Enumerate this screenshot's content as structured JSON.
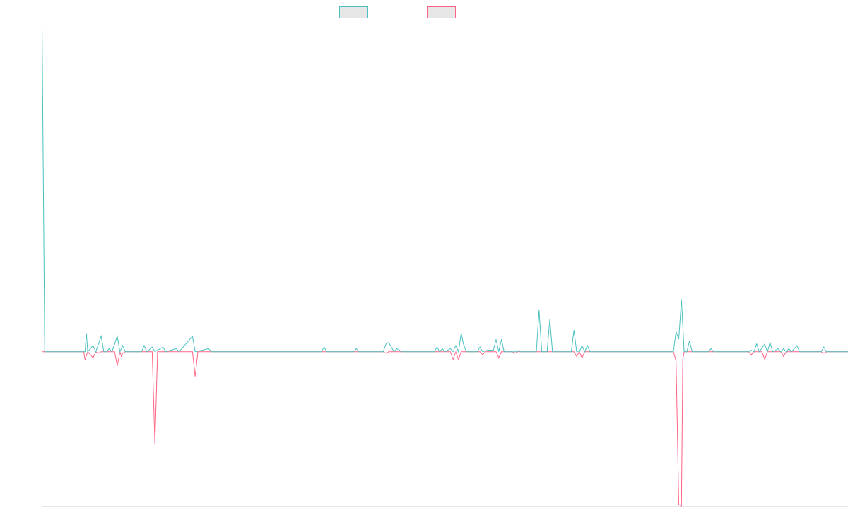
{
  "chart_data": {
    "type": "line",
    "title": "",
    "xlabel": "",
    "ylabel": "",
    "grid": false,
    "legend_position": "top-center",
    "x_count": 300,
    "ylim": [
      -100,
      212
    ],
    "series": [
      {
        "color": "#4bc0c0",
        "legend_fill": "#e6e6e6",
        "points": [
          [
            0,
            212
          ],
          [
            1,
            0
          ],
          [
            16,
            0
          ],
          [
            16.5,
            12
          ],
          [
            17,
            0
          ],
          [
            19,
            4
          ],
          [
            20,
            0
          ],
          [
            22,
            10
          ],
          [
            23,
            0
          ],
          [
            24,
            0
          ],
          [
            25,
            2
          ],
          [
            26,
            0
          ],
          [
            28,
            10
          ],
          [
            29,
            0
          ],
          [
            30,
            4
          ],
          [
            31,
            0
          ],
          [
            37,
            0
          ],
          [
            38,
            4
          ],
          [
            39,
            0
          ],
          [
            41,
            3
          ],
          [
            42,
            0
          ],
          [
            45,
            3
          ],
          [
            46,
            0
          ],
          [
            50,
            2
          ],
          [
            51,
            0
          ],
          [
            56,
            10
          ],
          [
            57,
            0
          ],
          [
            62,
            2
          ],
          [
            63,
            0
          ],
          [
            104,
            0
          ],
          [
            105,
            3
          ],
          [
            106,
            0
          ],
          [
            116,
            0
          ],
          [
            117,
            2
          ],
          [
            118,
            0
          ],
          [
            127,
            0
          ],
          [
            128,
            5
          ],
          [
            129,
            6
          ],
          [
            130,
            3
          ],
          [
            131,
            0
          ],
          [
            132,
            2
          ],
          [
            133,
            1
          ],
          [
            134,
            0
          ],
          [
            146,
            0
          ],
          [
            147,
            3
          ],
          [
            148,
            0
          ],
          [
            149,
            2
          ],
          [
            150,
            0
          ],
          [
            152,
            2
          ],
          [
            153,
            0
          ],
          [
            154,
            4
          ],
          [
            155,
            0
          ],
          [
            156,
            12
          ],
          [
            157,
            4
          ],
          [
            158,
            0
          ],
          [
            162,
            0
          ],
          [
            163,
            3
          ],
          [
            164,
            0
          ],
          [
            166,
            1
          ],
          [
            167,
            1
          ],
          [
            168,
            1
          ],
          [
            169,
            8
          ],
          [
            170,
            0
          ],
          [
            171,
            8
          ],
          [
            172,
            0
          ],
          [
            177,
            0
          ],
          [
            177.5,
            1
          ],
          [
            178,
            0
          ],
          [
            184,
            0
          ],
          [
            185,
            27
          ],
          [
            186,
            0
          ],
          [
            188,
            0
          ],
          [
            189,
            21
          ],
          [
            190,
            0
          ],
          [
            197,
            0
          ],
          [
            198,
            14
          ],
          [
            199,
            0
          ],
          [
            200,
            0
          ],
          [
            201,
            4
          ],
          [
            202,
            0
          ],
          [
            203,
            4
          ],
          [
            204,
            0
          ],
          [
            235,
            0
          ],
          [
            236,
            13
          ],
          [
            237,
            8
          ],
          [
            238,
            34
          ],
          [
            239,
            0
          ],
          [
            240,
            0
          ],
          [
            241,
            7
          ],
          [
            242,
            0
          ],
          [
            248,
            0
          ],
          [
            249,
            2
          ],
          [
            250,
            0
          ],
          [
            263,
            0
          ],
          [
            264,
            1
          ],
          [
            265,
            0
          ],
          [
            266,
            5
          ],
          [
            267,
            0
          ],
          [
            269,
            5
          ],
          [
            270,
            0
          ],
          [
            271,
            6
          ],
          [
            272,
            0
          ],
          [
            274,
            2
          ],
          [
            275,
            0
          ],
          [
            276,
            2
          ],
          [
            277,
            0
          ],
          [
            278,
            2
          ],
          [
            279,
            0
          ],
          [
            281,
            4
          ],
          [
            282,
            0
          ],
          [
            290,
            0
          ],
          [
            291,
            3
          ],
          [
            292,
            0
          ],
          [
            300,
            0
          ]
        ]
      },
      {
        "color": "#ff6384",
        "legend_fill": "#e6e6e6",
        "points": [
          [
            0,
            0
          ],
          [
            15.5,
            0
          ],
          [
            16,
            -5
          ],
          [
            17,
            0
          ],
          [
            19,
            -4
          ],
          [
            20,
            0
          ],
          [
            21,
            -1
          ],
          [
            22,
            0
          ],
          [
            27,
            0
          ],
          [
            28,
            -9
          ],
          [
            29,
            0
          ],
          [
            29.5,
            -3
          ],
          [
            30,
            -1
          ],
          [
            31,
            0
          ],
          [
            41,
            0
          ],
          [
            42,
            -60
          ],
          [
            43,
            0
          ],
          [
            56,
            0
          ],
          [
            57,
            -16
          ],
          [
            58,
            0
          ],
          [
            127,
            0
          ],
          [
            128,
            -1
          ],
          [
            129,
            0
          ],
          [
            152,
            0
          ],
          [
            153,
            -5
          ],
          [
            154,
            0
          ],
          [
            155,
            -5
          ],
          [
            156,
            0
          ],
          [
            163,
            0
          ],
          [
            164,
            -2
          ],
          [
            165,
            0
          ],
          [
            169,
            0
          ],
          [
            170,
            -4
          ],
          [
            171,
            0
          ],
          [
            175,
            0
          ],
          [
            176,
            -1
          ],
          [
            177,
            0
          ],
          [
            198,
            0
          ],
          [
            199,
            -3
          ],
          [
            200,
            0
          ],
          [
            201,
            -4
          ],
          [
            202,
            0
          ],
          [
            235,
            0
          ],
          [
            236,
            -6
          ],
          [
            237,
            -99
          ],
          [
            238,
            -100
          ],
          [
            238.5,
            -5
          ],
          [
            239,
            0
          ],
          [
            263,
            0
          ],
          [
            264,
            -2
          ],
          [
            265,
            0
          ],
          [
            268,
            0
          ],
          [
            269,
            -5
          ],
          [
            270,
            0
          ],
          [
            275,
            0
          ],
          [
            276,
            -3
          ],
          [
            277,
            0
          ],
          [
            290,
            0
          ],
          [
            291,
            -1
          ],
          [
            292,
            0
          ],
          [
            300,
            0
          ]
        ]
      }
    ]
  }
}
